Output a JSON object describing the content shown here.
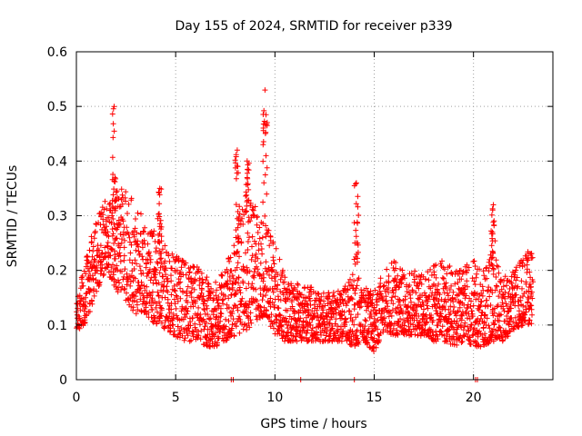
{
  "chart_data": {
    "type": "scatter",
    "title": "Day 155 of 2024, SRMTID for receiver p339",
    "xlabel": "GPS time / hours",
    "ylabel": "SRMTID / TECUs",
    "xlim": [
      0,
      24
    ],
    "ylim": [
      0,
      0.6
    ],
    "xticks": [
      0,
      5,
      10,
      15,
      20
    ],
    "xtick_labels": [
      "0",
      "5",
      "10",
      "15",
      "20"
    ],
    "yticks": [
      0,
      0.1,
      0.2,
      0.3,
      0.4,
      0.5,
      0.6
    ],
    "ytick_labels": [
      "0",
      "0.1",
      "0.2",
      "0.3",
      "0.4",
      "0.5",
      "0.6"
    ],
    "grid": true,
    "marker": "plus",
    "color": "#ff0000",
    "series_name": "SRMTID",
    "envelope_hours": [
      0,
      0.5,
      1,
      1.5,
      2,
      2.5,
      3,
      3.5,
      4,
      4.5,
      5,
      5.5,
      6,
      6.5,
      7,
      7.5,
      8,
      8.5,
      9,
      9.5,
      10,
      10.5,
      11,
      11.5,
      12,
      12.5,
      13,
      13.5,
      14,
      14.5,
      15,
      15.5,
      16,
      16.5,
      17,
      17.5,
      18,
      18.5,
      19,
      19.5,
      20,
      20.5,
      21,
      21.5,
      22,
      22.5,
      23
    ],
    "envelope_low": [
      0.09,
      0.1,
      0.16,
      0.2,
      0.16,
      0.14,
      0.12,
      0.12,
      0.1,
      0.09,
      0.08,
      0.07,
      0.07,
      0.06,
      0.06,
      0.07,
      0.08,
      0.09,
      0.1,
      0.12,
      0.08,
      0.07,
      0.07,
      0.07,
      0.07,
      0.07,
      0.07,
      0.07,
      0.06,
      0.07,
      0.05,
      0.09,
      0.08,
      0.08,
      0.08,
      0.08,
      0.07,
      0.07,
      0.06,
      0.07,
      0.06,
      0.06,
      0.07,
      0.07,
      0.09,
      0.1,
      0.1
    ],
    "envelope_high": [
      0.14,
      0.23,
      0.3,
      0.33,
      0.35,
      0.35,
      0.32,
      0.29,
      0.27,
      0.25,
      0.23,
      0.22,
      0.21,
      0.2,
      0.19,
      0.2,
      0.27,
      0.35,
      0.32,
      0.3,
      0.25,
      0.19,
      0.18,
      0.17,
      0.17,
      0.16,
      0.16,
      0.17,
      0.2,
      0.17,
      0.16,
      0.2,
      0.22,
      0.2,
      0.2,
      0.19,
      0.21,
      0.22,
      0.2,
      0.21,
      0.22,
      0.2,
      0.24,
      0.19,
      0.2,
      0.23,
      0.24
    ],
    "bursts": [
      {
        "x": 1.9,
        "ymin": 0.3,
        "ymax": 0.5
      },
      {
        "x": 4.2,
        "ymin": 0.22,
        "ymax": 0.35
      },
      {
        "x": 8.1,
        "ymin": 0.25,
        "ymax": 0.42
      },
      {
        "x": 8.6,
        "ymin": 0.28,
        "ymax": 0.4
      },
      {
        "x": 9.5,
        "ymin": 0.3,
        "ymax": 0.53
      },
      {
        "x": 14.1,
        "ymin": 0.2,
        "ymax": 0.36
      },
      {
        "x": 21.0,
        "ymin": 0.2,
        "ymax": 0.32
      }
    ],
    "zero_markers": [
      7.8,
      7.9,
      11.3,
      14.0,
      20.1,
      20.2
    ]
  }
}
